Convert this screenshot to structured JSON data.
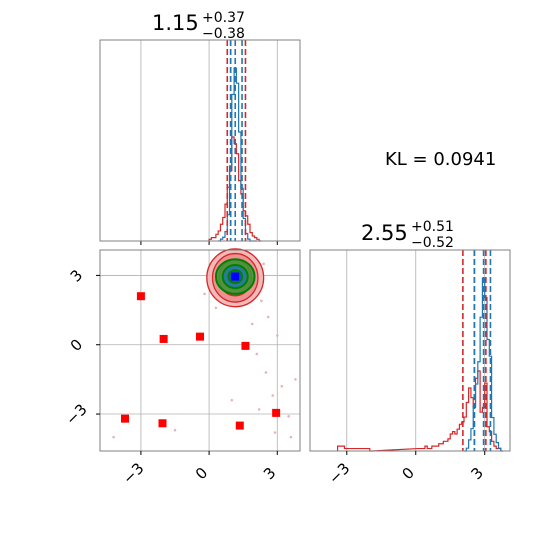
{
  "chart_data": {
    "type": "corner",
    "parameters": 2,
    "kl_label": "KL = 0.0941",
    "colors": {
      "series_a": "#1f77b4",
      "series_b": "#d62728",
      "contour_core": "#008000",
      "marker_true": "#0000ff",
      "markers_other": "#ff0000",
      "grid": "#b0b0b0"
    },
    "panels": [
      {
        "name": "param1-marginal",
        "title_value": "1.15",
        "title_plus": "+0.37",
        "title_minus": "−0.38",
        "xlim": [
          -4.8,
          4.0
        ],
        "grid": true,
        "quantiles_series_a": [
          0.95,
          1.15,
          1.45
        ],
        "quantiles_series_b": [
          0.8,
          0.95,
          1.6
        ],
        "histogram_series_a": {
          "x": [
            0.45,
            0.55,
            0.65,
            0.75,
            0.85,
            0.95,
            1.05,
            1.15,
            1.25,
            1.35,
            1.45,
            1.55,
            1.65,
            1.75,
            1.85,
            1.95,
            2.05
          ],
          "y": [
            0,
            1,
            2,
            5,
            14,
            40,
            78,
            92,
            84,
            58,
            28,
            12,
            4,
            1,
            0,
            0,
            0
          ]
        },
        "histogram_series_b": {
          "x": [
            0.05,
            0.15,
            0.25,
            0.35,
            0.45,
            0.55,
            0.65,
            0.75,
            0.85,
            0.95,
            1.05,
            1.15,
            1.25,
            1.35,
            1.45,
            1.55,
            1.65,
            1.75,
            1.85,
            1.95,
            2.05,
            2.15,
            2.25
          ],
          "y": [
            1,
            2,
            2,
            4,
            6,
            10,
            14,
            22,
            32,
            42,
            62,
            58,
            52,
            36,
            28,
            18,
            15,
            10,
            5,
            3,
            2,
            1,
            0
          ]
        }
      },
      {
        "name": "param2-marginal",
        "title_value": "2.55",
        "title_plus": "+0.51",
        "title_minus": "−0.52",
        "xlim": [
          -4.6,
          4.1
        ],
        "grid": true,
        "quantiles_series_a": [
          2.55,
          2.95,
          3.25
        ],
        "quantiles_series_b": [
          2.05,
          2.55,
          3.05
        ],
        "histogram_series_a": {
          "x": [
            2.15,
            2.25,
            2.35,
            2.45,
            2.55,
            2.65,
            2.75,
            2.85,
            2.95,
            3.05,
            3.15,
            3.25,
            3.35,
            3.45,
            3.55,
            3.65,
            3.75
          ],
          "y": [
            0,
            1,
            4,
            8,
            16,
            24,
            32,
            48,
            62,
            55,
            40,
            34,
            12,
            6,
            3,
            1,
            0
          ]
        },
        "histogram_series_b": {
          "x": [
            -3.35,
            -3.25,
            -3.15,
            -3.05,
            -2.95,
            -2.85,
            -2.75,
            -2.65,
            -2.55,
            -2.45,
            -2.35,
            -2.25,
            -2.15,
            -2.05,
            -1.95,
            0.15,
            0.25,
            0.35,
            0.45,
            0.55,
            0.65,
            0.75,
            0.85,
            0.95,
            1.05,
            1.15,
            1.25,
            1.35,
            1.45,
            1.55,
            1.65,
            1.75,
            1.85,
            1.95,
            2.05,
            2.15,
            2.25,
            2.35,
            2.45,
            2.55,
            2.65,
            2.75,
            2.85,
            2.95,
            3.05,
            3.15,
            3.25,
            3.35,
            3.45,
            3.55,
            3.65
          ],
          "y": [
            2,
            2,
            2,
            1,
            1,
            1,
            1,
            1,
            1,
            1,
            1,
            1,
            1,
            1,
            0,
            1,
            1,
            1,
            2,
            1,
            1,
            2,
            2,
            2,
            3,
            3,
            4,
            4,
            5,
            7,
            8,
            7,
            9,
            11,
            12,
            14,
            20,
            26,
            22,
            18,
            30,
            33,
            16,
            18,
            28,
            10,
            8,
            4,
            2,
            1,
            1
          ]
        }
      },
      {
        "name": "joint",
        "xlim": [
          -4.8,
          4.0
        ],
        "ylim": [
          -4.6,
          4.1
        ],
        "grid": true,
        "ticks": [
          -3,
          0,
          3
        ],
        "tick_labels": [
          "−3",
          "0",
          "3"
        ],
        "true_point": {
          "x": 1.15,
          "y": 2.95
        },
        "contour_center": {
          "x": 1.15,
          "y": 2.55
        },
        "outer_red_square_markers": [
          {
            "x": -3.0,
            "y": 2.1
          },
          {
            "x": -2.0,
            "y": 0.25
          },
          {
            "x": -0.4,
            "y": 0.35
          },
          {
            "x": 1.6,
            "y": -0.05
          },
          {
            "x": -3.7,
            "y": -3.2
          },
          {
            "x": -2.05,
            "y": -3.4
          },
          {
            "x": 1.35,
            "y": -3.5
          },
          {
            "x": 2.95,
            "y": -2.95
          }
        ],
        "scatter_samples": [
          {
            "x": 2.3,
            "y": 1.9
          },
          {
            "x": 2.6,
            "y": 1.2
          },
          {
            "x": 2.1,
            "y": -0.4
          },
          {
            "x": 2.5,
            "y": -1.2
          },
          {
            "x": 3.2,
            "y": -1.8
          },
          {
            "x": 2.8,
            "y": -2.2
          },
          {
            "x": 3.5,
            "y": -3.1
          },
          {
            "x": 2.9,
            "y": -3.8
          },
          {
            "x": 3.8,
            "y": -1.5
          },
          {
            "x": 1.9,
            "y": 0.9
          },
          {
            "x": -0.2,
            "y": 2.2
          },
          {
            "x": 0.3,
            "y": 1.6
          },
          {
            "x": 3.6,
            "y": -4.0
          },
          {
            "x": 2.2,
            "y": -2.8
          },
          {
            "x": -1.5,
            "y": -3.7
          },
          {
            "x": -4.2,
            "y": -4.0
          },
          {
            "x": 1.0,
            "y": -2.4
          },
          {
            "x": 3.0,
            "y": 0.4
          },
          {
            "x": 0.5,
            "y": 3.6
          },
          {
            "x": 2.4,
            "y": 3.5
          }
        ]
      }
    ]
  }
}
